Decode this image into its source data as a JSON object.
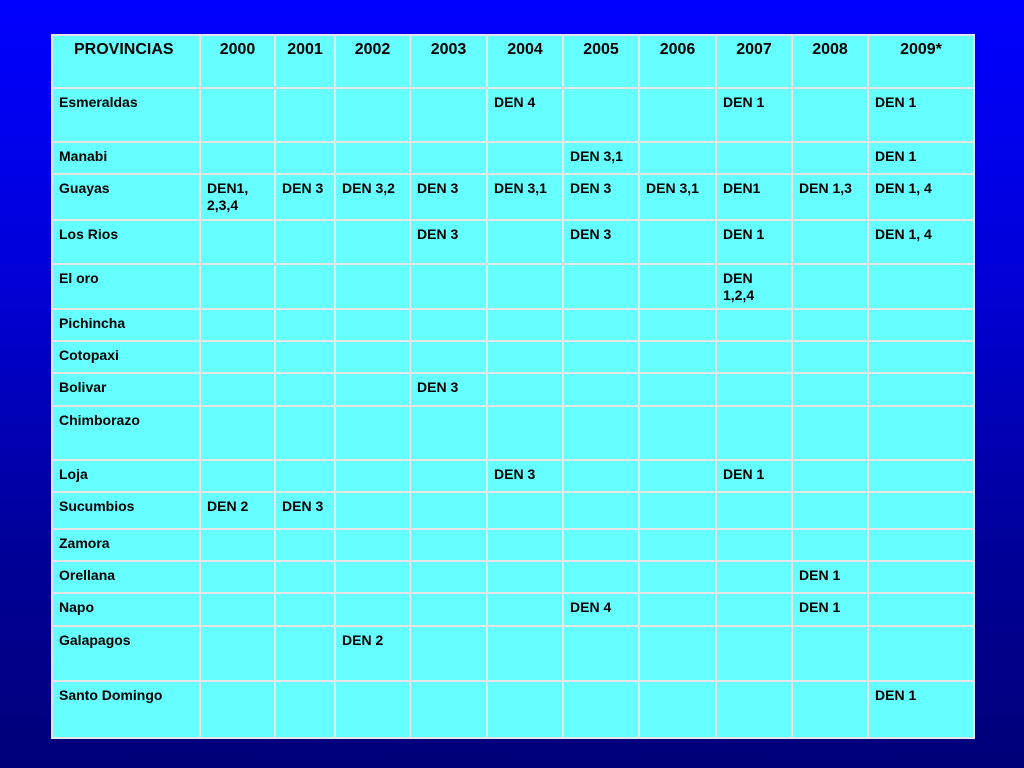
{
  "table": {
    "headers": [
      "PROVINCIAS",
      "2000",
      "2001",
      "2002",
      "2003",
      "2004",
      "2005",
      "2006",
      "2007",
      "2008",
      "2009*"
    ],
    "rows": [
      {
        "province": "Esmeraldas",
        "cells": [
          "",
          "",
          "",
          "",
          "DEN 4",
          "",
          "",
          "DEN 1",
          "",
          "DEN 1"
        ]
      },
      {
        "province": "Manabi",
        "cells": [
          "",
          "",
          "",
          "",
          "",
          "DEN 3,1",
          "",
          "",
          "",
          "DEN 1"
        ]
      },
      {
        "province": "Guayas",
        "cells": [
          "DEN1, 2,3,4",
          "DEN 3",
          "DEN 3,2",
          "DEN 3",
          "DEN 3,1",
          "DEN 3",
          "DEN 3,1",
          "DEN1",
          "DEN 1,3",
          "DEN 1, 4"
        ]
      },
      {
        "province": "Los Rios",
        "cells": [
          "",
          "",
          "",
          "DEN 3",
          "",
          "DEN 3",
          "",
          "DEN 1",
          "",
          "DEN 1, 4"
        ]
      },
      {
        "province": "El oro",
        "cells": [
          "",
          "",
          "",
          "",
          "",
          "",
          "",
          "DEN 1,2,4",
          "",
          ""
        ]
      },
      {
        "province": "Pichincha",
        "cells": [
          "",
          "",
          "",
          "",
          "",
          "",
          "",
          "",
          "",
          ""
        ]
      },
      {
        "province": "Cotopaxi",
        "cells": [
          "",
          "",
          "",
          "",
          "",
          "",
          "",
          "",
          "",
          ""
        ]
      },
      {
        "province": "Bolivar",
        "cells": [
          "",
          "",
          "",
          "DEN 3",
          "",
          "",
          "",
          "",
          "",
          ""
        ]
      },
      {
        "province": "Chimborazo",
        "cells": [
          "",
          "",
          "",
          "",
          "",
          "",
          "",
          "",
          "",
          ""
        ]
      },
      {
        "province": "Loja",
        "cells": [
          "",
          "",
          "",
          "",
          "DEN 3",
          "",
          "",
          "DEN 1",
          "",
          ""
        ]
      },
      {
        "province": "Sucumbios",
        "cells": [
          "DEN 2",
          "DEN 3",
          "",
          "",
          "",
          "",
          "",
          "",
          "",
          ""
        ]
      },
      {
        "province": "Zamora",
        "cells": [
          "",
          "",
          "",
          "",
          "",
          "",
          "",
          "",
          "",
          ""
        ]
      },
      {
        "province": "Orellana",
        "cells": [
          "",
          "",
          "",
          "",
          "",
          "",
          "",
          "",
          "DEN 1",
          ""
        ]
      },
      {
        "province": "Napo",
        "cells": [
          "",
          "",
          "",
          "",
          "",
          "DEN 4",
          "",
          "",
          "DEN 1",
          ""
        ]
      },
      {
        "province": "Galapagos",
        "cells": [
          "",
          "",
          "DEN 2",
          "",
          "",
          "",
          "",
          "",
          "",
          ""
        ]
      },
      {
        "province": "Santo Domingo",
        "cells": [
          "",
          "",
          "",
          "",
          "",
          "",
          "",
          "",
          "",
          "DEN 1"
        ]
      }
    ]
  },
  "colors": {
    "background_top": "#0000ff",
    "background_bottom": "#000078",
    "table_fill": "#66ffff",
    "grid_line": "#e6e6e6"
  }
}
